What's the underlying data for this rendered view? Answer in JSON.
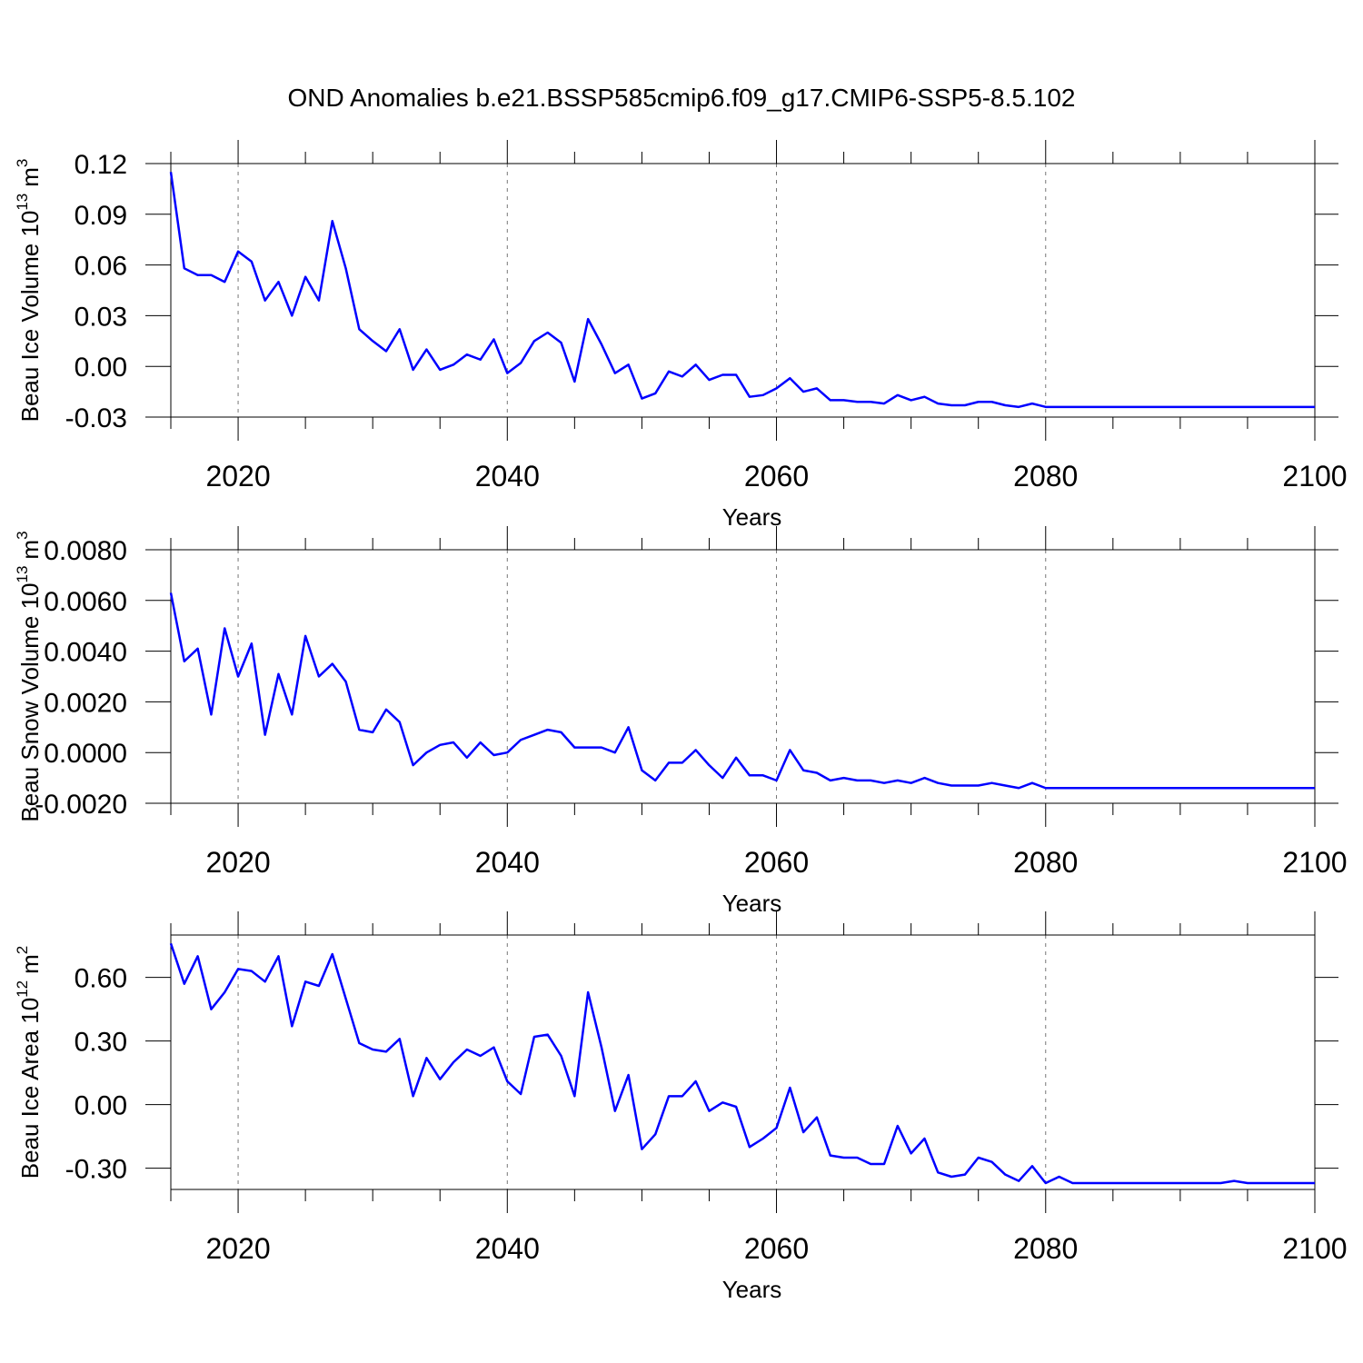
{
  "chart_data": [
    {
      "type": "line",
      "title": "OND Anomalies b.e21.BSSP585cmip6.f09_g17.CMIP6-SSP5-8.5.102",
      "xlabel": "Years",
      "ylabel": {
        "text": "Beau Ice Volume 10",
        "exponent": "13",
        "unit": "m",
        "unit_exponent": "3"
      },
      "xlim": [
        2015,
        2100
      ],
      "xticks": [
        2020,
        2040,
        2060,
        2080,
        2100
      ],
      "minor_xticks": [
        2015,
        2025,
        2030,
        2035,
        2045,
        2050,
        2055,
        2065,
        2070,
        2075,
        2085,
        2090,
        2095
      ],
      "ylim": [
        -0.03,
        0.12
      ],
      "yticks": [
        {
          "value": -0.03,
          "label": "-0.03"
        },
        {
          "value": 0,
          "label": "0.00"
        },
        {
          "value": 0.03,
          "label": "0.03"
        },
        {
          "value": 0.06,
          "label": "0.06"
        },
        {
          "value": 0.09,
          "label": "0.09"
        },
        {
          "value": 0.12,
          "label": "0.12"
        }
      ],
      "grid": true,
      "x": [
        2015,
        2016,
        2017,
        2018,
        2019,
        2020,
        2021,
        2022,
        2023,
        2024,
        2025,
        2026,
        2027,
        2028,
        2029,
        2030,
        2031,
        2032,
        2033,
        2034,
        2035,
        2036,
        2037,
        2038,
        2039,
        2040,
        2041,
        2042,
        2043,
        2044,
        2045,
        2046,
        2047,
        2048,
        2049,
        2050,
        2051,
        2052,
        2053,
        2054,
        2055,
        2056,
        2057,
        2058,
        2059,
        2060,
        2061,
        2062,
        2063,
        2064,
        2065,
        2066,
        2067,
        2068,
        2069,
        2070,
        2071,
        2072,
        2073,
        2074,
        2075,
        2076,
        2077,
        2078,
        2079,
        2080,
        2081,
        2082,
        2083,
        2084,
        2085,
        2086,
        2087,
        2088,
        2089,
        2090,
        2091,
        2092,
        2093,
        2094,
        2095,
        2096,
        2097,
        2098,
        2099,
        2100
      ],
      "series": [
        {
          "color": "#0000ff",
          "values": [
            0.115,
            0.058,
            0.054,
            0.054,
            0.05,
            0.068,
            0.062,
            0.039,
            0.05,
            0.03,
            0.053,
            0.039,
            0.086,
            0.058,
            0.022,
            0.015,
            0.009,
            0.022,
            -0.002,
            0.01,
            -0.002,
            0.001,
            0.007,
            0.004,
            0.016,
            -0.004,
            0.002,
            0.015,
            0.02,
            0.014,
            -0.009,
            0.028,
            0.013,
            -0.004,
            0.001,
            -0.019,
            -0.016,
            -0.003,
            -0.006,
            0.001,
            -0.008,
            -0.005,
            -0.005,
            -0.018,
            -0.017,
            -0.013,
            -0.007,
            -0.015,
            -0.013,
            -0.02,
            -0.02,
            -0.021,
            -0.021,
            -0.022,
            -0.017,
            -0.02,
            -0.018,
            -0.022,
            -0.023,
            -0.023,
            -0.021,
            -0.021,
            -0.023,
            -0.024,
            -0.022,
            -0.024,
            -0.024,
            -0.024,
            -0.024,
            -0.024,
            -0.024,
            -0.024,
            -0.024,
            -0.024,
            -0.024,
            -0.024,
            -0.024,
            -0.024,
            -0.024,
            -0.024,
            -0.024,
            -0.024,
            -0.024,
            -0.024,
            -0.024,
            -0.024
          ]
        }
      ]
    },
    {
      "type": "line",
      "xlabel": "Years",
      "ylabel": {
        "text": "Beau Snow Volume 10",
        "exponent": "13",
        "unit": "m",
        "unit_exponent": "3"
      },
      "xlim": [
        2015,
        2100
      ],
      "xticks": [
        2020,
        2040,
        2060,
        2080,
        2100
      ],
      "minor_xticks": [
        2015,
        2025,
        2030,
        2035,
        2045,
        2050,
        2055,
        2065,
        2070,
        2075,
        2085,
        2090,
        2095
      ],
      "ylim": [
        -0.002,
        0.008
      ],
      "yticks": [
        {
          "value": -0.002,
          "label": "-0.0020"
        },
        {
          "value": 0,
          "label": "0.0000"
        },
        {
          "value": 0.002,
          "label": "0.0020"
        },
        {
          "value": 0.004,
          "label": "0.0040"
        },
        {
          "value": 0.006,
          "label": "0.0060"
        },
        {
          "value": 0.008,
          "label": "0.0080"
        }
      ],
      "grid": true,
      "x": [
        2015,
        2016,
        2017,
        2018,
        2019,
        2020,
        2021,
        2022,
        2023,
        2024,
        2025,
        2026,
        2027,
        2028,
        2029,
        2030,
        2031,
        2032,
        2033,
        2034,
        2035,
        2036,
        2037,
        2038,
        2039,
        2040,
        2041,
        2042,
        2043,
        2044,
        2045,
        2046,
        2047,
        2048,
        2049,
        2050,
        2051,
        2052,
        2053,
        2054,
        2055,
        2056,
        2057,
        2058,
        2059,
        2060,
        2061,
        2062,
        2063,
        2064,
        2065,
        2066,
        2067,
        2068,
        2069,
        2070,
        2071,
        2072,
        2073,
        2074,
        2075,
        2076,
        2077,
        2078,
        2079,
        2080,
        2081,
        2082,
        2083,
        2084,
        2085,
        2086,
        2087,
        2088,
        2089,
        2090,
        2091,
        2092,
        2093,
        2094,
        2095,
        2096,
        2097,
        2098,
        2099,
        2100
      ],
      "series": [
        {
          "color": "#0000ff",
          "values": [
            0.0063,
            0.0036,
            0.0041,
            0.0015,
            0.0049,
            0.003,
            0.0043,
            0.0007,
            0.0031,
            0.0015,
            0.0046,
            0.003,
            0.0035,
            0.0028,
            0.0009,
            0.0008,
            0.0017,
            0.0012,
            -0.0005,
            0.0,
            0.0003,
            0.0004,
            -0.0002,
            0.0004,
            -0.0001,
            0.0,
            0.0005,
            0.0007,
            0.0009,
            0.0008,
            0.0002,
            0.0002,
            0.0002,
            -0.0,
            0.001,
            -0.0007,
            -0.0011,
            -0.0004,
            -0.0004,
            0.0001,
            -0.0005,
            -0.001,
            -0.0002,
            -0.0009,
            -0.0009,
            -0.0011,
            0.0001,
            -0.0007,
            -0.0008,
            -0.0011,
            -0.001,
            -0.0011,
            -0.0011,
            -0.0012,
            -0.0011,
            -0.0012,
            -0.001,
            -0.0012,
            -0.0013,
            -0.0013,
            -0.0013,
            -0.0012,
            -0.0013,
            -0.0014,
            -0.0012,
            -0.0014,
            -0.0014,
            -0.0014,
            -0.0014,
            -0.0014,
            -0.0014,
            -0.0014,
            -0.0014,
            -0.0014,
            -0.0014,
            -0.0014,
            -0.0014,
            -0.0014,
            -0.0014,
            -0.0014,
            -0.0014,
            -0.0014,
            -0.0014,
            -0.0014,
            -0.0014,
            -0.0014
          ]
        }
      ]
    },
    {
      "type": "line",
      "xlabel": "Years",
      "ylabel": {
        "text": "Beau Ice Area 10",
        "exponent": "12",
        "unit": "m",
        "unit_exponent": "2"
      },
      "xlim": [
        2015,
        2100
      ],
      "xticks": [
        2020,
        2040,
        2060,
        2080,
        2100
      ],
      "minor_xticks": [
        2015,
        2025,
        2030,
        2035,
        2045,
        2050,
        2055,
        2065,
        2070,
        2075,
        2085,
        2090,
        2095
      ],
      "ylim": [
        -0.4,
        0.8
      ],
      "yticks": [
        {
          "value": -0.3,
          "label": "-0.30"
        },
        {
          "value": 0,
          "label": "0.00"
        },
        {
          "value": 0.3,
          "label": "0.30"
        },
        {
          "value": 0.6,
          "label": "0.60"
        }
      ],
      "grid": true,
      "x": [
        2015,
        2016,
        2017,
        2018,
        2019,
        2020,
        2021,
        2022,
        2023,
        2024,
        2025,
        2026,
        2027,
        2028,
        2029,
        2030,
        2031,
        2032,
        2033,
        2034,
        2035,
        2036,
        2037,
        2038,
        2039,
        2040,
        2041,
        2042,
        2043,
        2044,
        2045,
        2046,
        2047,
        2048,
        2049,
        2050,
        2051,
        2052,
        2053,
        2054,
        2055,
        2056,
        2057,
        2058,
        2059,
        2060,
        2061,
        2062,
        2063,
        2064,
        2065,
        2066,
        2067,
        2068,
        2069,
        2070,
        2071,
        2072,
        2073,
        2074,
        2075,
        2076,
        2077,
        2078,
        2079,
        2080,
        2081,
        2082,
        2083,
        2084,
        2085,
        2086,
        2087,
        2088,
        2089,
        2090,
        2091,
        2092,
        2093,
        2094,
        2095,
        2096,
        2097,
        2098,
        2099,
        2100
      ],
      "series": [
        {
          "color": "#0000ff",
          "values": [
            0.76,
            0.57,
            0.7,
            0.45,
            0.53,
            0.64,
            0.63,
            0.58,
            0.7,
            0.37,
            0.58,
            0.56,
            0.71,
            0.5,
            0.29,
            0.26,
            0.25,
            0.31,
            0.04,
            0.22,
            0.12,
            0.2,
            0.26,
            0.23,
            0.27,
            0.11,
            0.05,
            0.32,
            0.33,
            0.23,
            0.04,
            0.53,
            0.27,
            -0.03,
            0.14,
            -0.21,
            -0.14,
            0.04,
            0.04,
            0.11,
            -0.03,
            0.01,
            -0.01,
            -0.2,
            -0.16,
            -0.11,
            0.08,
            -0.13,
            -0.06,
            -0.24,
            -0.25,
            -0.25,
            -0.28,
            -0.28,
            -0.1,
            -0.23,
            -0.16,
            -0.32,
            -0.34,
            -0.33,
            -0.25,
            -0.27,
            -0.33,
            -0.36,
            -0.29,
            -0.37,
            -0.34,
            -0.37,
            -0.37,
            -0.37,
            -0.37,
            -0.37,
            -0.37,
            -0.37,
            -0.37,
            -0.37,
            -0.37,
            -0.37,
            -0.37,
            -0.36,
            -0.37,
            -0.37,
            -0.37,
            -0.37,
            -0.37,
            -0.37
          ]
        }
      ]
    }
  ]
}
